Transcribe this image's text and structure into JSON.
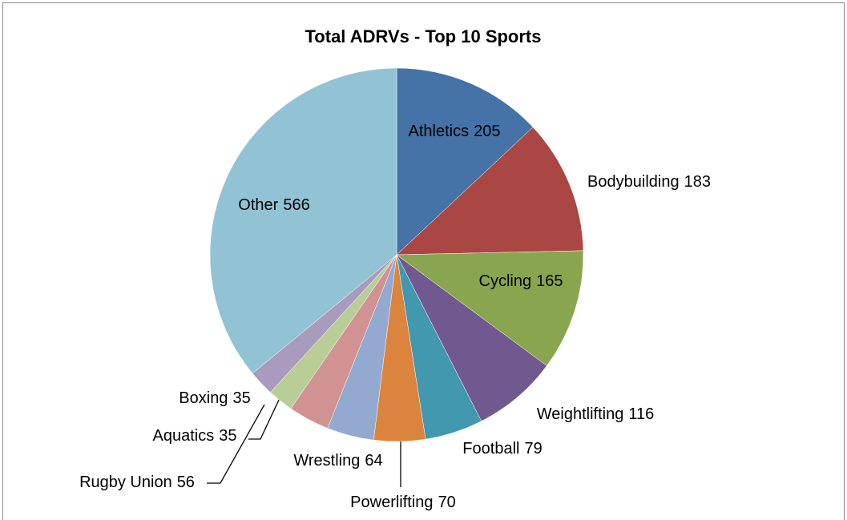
{
  "chart_data": {
    "type": "pie",
    "title": "Total ADRVs - Top 10 Sports",
    "categories": [
      "Athletics",
      "Bodybuilding",
      "Cycling",
      "Weightlifting",
      "Football",
      "Powerlifting",
      "Wrestling",
      "Rugby Union",
      "Aquatics",
      "Boxing",
      "Other"
    ],
    "values": [
      205,
      183,
      165,
      116,
      79,
      70,
      64,
      56,
      35,
      35,
      566
    ],
    "colors": [
      "#4572a7",
      "#aa4643",
      "#89a54e",
      "#71588f",
      "#4198af",
      "#db843d",
      "#93a9cf",
      "#d19392",
      "#b9cd96",
      "#a99bbd",
      "#92c3d5"
    ]
  }
}
